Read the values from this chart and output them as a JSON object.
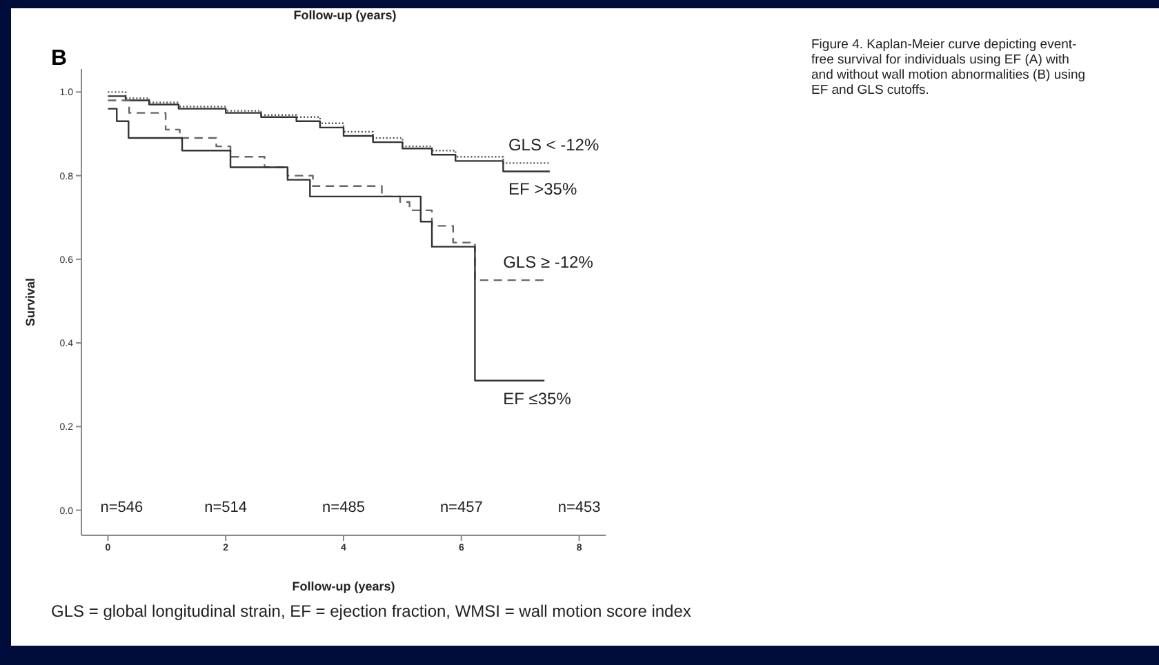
{
  "chart_data": {
    "type": "step",
    "title": "B",
    "xlabel": "Follow-up (years)",
    "ylabel": "Survival",
    "xlim": [
      -0.45,
      8.45
    ],
    "xticks": [
      0,
      2,
      4,
      6,
      8
    ],
    "ylim": [
      -0.06,
      1.055
    ],
    "yticks": [
      {
        "value": 0,
        "label": "0.0"
      },
      {
        "value": 0.2,
        "label": "0.2"
      },
      {
        "value": 0.4,
        "label": "0.4"
      },
      {
        "value": 0.6,
        "label": "0.6"
      },
      {
        "value": 0.8,
        "label": "0.8"
      },
      {
        "value": 1,
        "label": "1.0"
      }
    ],
    "grid": false,
    "legend": false,
    "marker": "none",
    "series": [
      {
        "name": "GLS < -12%",
        "color": "#555555",
        "line_style": "dotted",
        "x": [
          0,
          0.3,
          0.7,
          1.2,
          2,
          2.6,
          3.2,
          3.6,
          4,
          4.5,
          5,
          5.5,
          5.9,
          6.71,
          7.5
        ],
        "values": [
          1.0,
          0.985,
          0.975,
          0.965,
          0.955,
          0.945,
          0.94,
          0.925,
          0.905,
          0.89,
          0.87,
          0.86,
          0.845,
          0.83,
          0.83
        ]
      },
      {
        "name": "EF >35%",
        "color": "#333333",
        "line_style": "solid",
        "x": [
          0,
          0.3,
          0.7,
          1.2,
          2,
          2.6,
          3.2,
          3.6,
          4,
          4.5,
          5,
          5.5,
          5.9,
          6.71,
          7.5
        ],
        "values": [
          0.99,
          0.98,
          0.97,
          0.96,
          0.95,
          0.94,
          0.93,
          0.915,
          0.895,
          0.88,
          0.865,
          0.85,
          0.835,
          0.81,
          0.81
        ]
      },
      {
        "name": "GLS ≥ -12%",
        "color": "#666666",
        "line_style": "dashed",
        "x": [
          0,
          0.36,
          0.98,
          1.22,
          1.84,
          2.08,
          2.66,
          3.05,
          3.48,
          4.65,
          4.96,
          5.12,
          5.5,
          5.86,
          6.23,
          7.41
        ],
        "values": [
          0.98,
          0.95,
          0.91,
          0.89,
          0.87,
          0.845,
          0.82,
          0.8,
          0.775,
          0.75,
          0.737,
          0.717,
          0.68,
          0.64,
          0.55,
          0.55
        ]
      },
      {
        "name": "EF ≤35%",
        "color": "#333333",
        "line_style": "solid",
        "x": [
          0,
          0.15,
          0.35,
          1.26,
          2.08,
          3.05,
          3.43,
          5.31,
          5.5,
          6.23,
          7.41
        ],
        "values": [
          0.96,
          0.93,
          0.89,
          0.86,
          0.82,
          0.79,
          0.75,
          0.69,
          0.63,
          0.31,
          0.31
        ]
      }
    ],
    "annotations": [
      "Follow-up (years)",
      "Figure 4. Kaplan-Meier curve depicting event-free survival for individuals using EF (A) with and without wall motion abnormalities (B) using EF and GLS cutoffs.",
      "GLS = global longitudinal strain, EF = ejection fraction,  WMSI = wall motion score index",
      "n=546",
      "n=514",
      "n=485",
      "n=457",
      "n=453"
    ]
  }
}
